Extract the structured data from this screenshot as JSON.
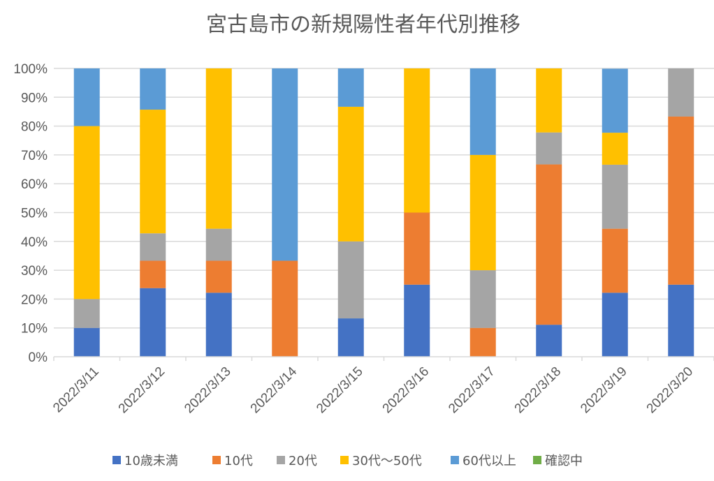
{
  "chart_data": {
    "type": "bar",
    "stacked": "percent",
    "title": "宮古島市の新規陽性者年代別推移",
    "xlabel": "",
    "ylabel": "",
    "ylim": [
      0,
      100
    ],
    "yticks": [
      "0%",
      "10%",
      "20%",
      "30%",
      "40%",
      "50%",
      "60%",
      "70%",
      "80%",
      "90%",
      "100%"
    ],
    "grid": true,
    "legend_position": "bottom",
    "categories": [
      "2022/3/11",
      "2022/3/12",
      "2022/3/13",
      "2022/3/14",
      "2022/3/15",
      "2022/3/16",
      "2022/3/17",
      "2022/3/18",
      "2022/3/19",
      "2022/3/20"
    ],
    "series": [
      {
        "name": "10歳未満",
        "color": "#4472C4",
        "values": [
          10,
          23.8,
          22.2,
          0,
          13.3,
          25,
          0,
          11.1,
          22.2,
          25
        ]
      },
      {
        "name": "10代",
        "color": "#ED7D31",
        "values": [
          0,
          9.5,
          11.1,
          33.3,
          0,
          25,
          10,
          55.6,
          22.2,
          58.3
        ]
      },
      {
        "name": "20代",
        "color": "#A5A5A5",
        "values": [
          10,
          9.5,
          11.1,
          0,
          26.7,
          0,
          20,
          11.1,
          22.2,
          16.7
        ]
      },
      {
        "name": "30代～50代",
        "color": "#FFC000",
        "values": [
          60,
          42.9,
          55.6,
          0,
          46.7,
          50,
          40,
          22.2,
          11.1,
          0
        ]
      },
      {
        "name": "60代以上",
        "color": "#5B9BD5",
        "values": [
          20,
          14.3,
          0,
          66.7,
          13.3,
          0,
          30,
          0,
          22.2,
          0
        ]
      },
      {
        "name": "確認中",
        "color": "#70AD47",
        "values": [
          0,
          0,
          0,
          0,
          0,
          0,
          0,
          0,
          0,
          0
        ]
      }
    ]
  }
}
